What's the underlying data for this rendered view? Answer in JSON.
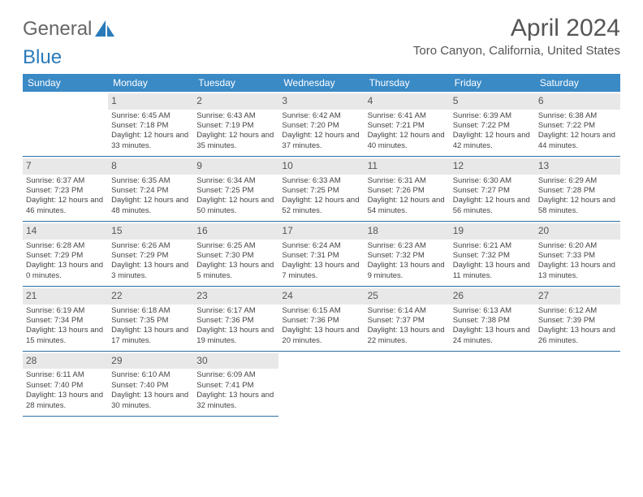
{
  "brand": {
    "part1": "General",
    "part2": "Blue"
  },
  "title": "April 2024",
  "location": "Toro Canyon, California, United States",
  "header_bg": "#3a8ac6",
  "daynum_bg": "#e8e8e8",
  "row_border": "#2a6fa5",
  "columns": [
    "Sunday",
    "Monday",
    "Tuesday",
    "Wednesday",
    "Thursday",
    "Friday",
    "Saturday"
  ],
  "weeks": [
    [
      null,
      {
        "n": "1",
        "sr": "6:45 AM",
        "ss": "7:18 PM",
        "dl": "12 hours and 33 minutes."
      },
      {
        "n": "2",
        "sr": "6:43 AM",
        "ss": "7:19 PM",
        "dl": "12 hours and 35 minutes."
      },
      {
        "n": "3",
        "sr": "6:42 AM",
        "ss": "7:20 PM",
        "dl": "12 hours and 37 minutes."
      },
      {
        "n": "4",
        "sr": "6:41 AM",
        "ss": "7:21 PM",
        "dl": "12 hours and 40 minutes."
      },
      {
        "n": "5",
        "sr": "6:39 AM",
        "ss": "7:22 PM",
        "dl": "12 hours and 42 minutes."
      },
      {
        "n": "6",
        "sr": "6:38 AM",
        "ss": "7:22 PM",
        "dl": "12 hours and 44 minutes."
      }
    ],
    [
      {
        "n": "7",
        "sr": "6:37 AM",
        "ss": "7:23 PM",
        "dl": "12 hours and 46 minutes."
      },
      {
        "n": "8",
        "sr": "6:35 AM",
        "ss": "7:24 PM",
        "dl": "12 hours and 48 minutes."
      },
      {
        "n": "9",
        "sr": "6:34 AM",
        "ss": "7:25 PM",
        "dl": "12 hours and 50 minutes."
      },
      {
        "n": "10",
        "sr": "6:33 AM",
        "ss": "7:25 PM",
        "dl": "12 hours and 52 minutes."
      },
      {
        "n": "11",
        "sr": "6:31 AM",
        "ss": "7:26 PM",
        "dl": "12 hours and 54 minutes."
      },
      {
        "n": "12",
        "sr": "6:30 AM",
        "ss": "7:27 PM",
        "dl": "12 hours and 56 minutes."
      },
      {
        "n": "13",
        "sr": "6:29 AM",
        "ss": "7:28 PM",
        "dl": "12 hours and 58 minutes."
      }
    ],
    [
      {
        "n": "14",
        "sr": "6:28 AM",
        "ss": "7:29 PM",
        "dl": "13 hours and 0 minutes."
      },
      {
        "n": "15",
        "sr": "6:26 AM",
        "ss": "7:29 PM",
        "dl": "13 hours and 3 minutes."
      },
      {
        "n": "16",
        "sr": "6:25 AM",
        "ss": "7:30 PM",
        "dl": "13 hours and 5 minutes."
      },
      {
        "n": "17",
        "sr": "6:24 AM",
        "ss": "7:31 PM",
        "dl": "13 hours and 7 minutes."
      },
      {
        "n": "18",
        "sr": "6:23 AM",
        "ss": "7:32 PM",
        "dl": "13 hours and 9 minutes."
      },
      {
        "n": "19",
        "sr": "6:21 AM",
        "ss": "7:32 PM",
        "dl": "13 hours and 11 minutes."
      },
      {
        "n": "20",
        "sr": "6:20 AM",
        "ss": "7:33 PM",
        "dl": "13 hours and 13 minutes."
      }
    ],
    [
      {
        "n": "21",
        "sr": "6:19 AM",
        "ss": "7:34 PM",
        "dl": "13 hours and 15 minutes."
      },
      {
        "n": "22",
        "sr": "6:18 AM",
        "ss": "7:35 PM",
        "dl": "13 hours and 17 minutes."
      },
      {
        "n": "23",
        "sr": "6:17 AM",
        "ss": "7:36 PM",
        "dl": "13 hours and 19 minutes."
      },
      {
        "n": "24",
        "sr": "6:15 AM",
        "ss": "7:36 PM",
        "dl": "13 hours and 20 minutes."
      },
      {
        "n": "25",
        "sr": "6:14 AM",
        "ss": "7:37 PM",
        "dl": "13 hours and 22 minutes."
      },
      {
        "n": "26",
        "sr": "6:13 AM",
        "ss": "7:38 PM",
        "dl": "13 hours and 24 minutes."
      },
      {
        "n": "27",
        "sr": "6:12 AM",
        "ss": "7:39 PM",
        "dl": "13 hours and 26 minutes."
      }
    ],
    [
      {
        "n": "28",
        "sr": "6:11 AM",
        "ss": "7:40 PM",
        "dl": "13 hours and 28 minutes."
      },
      {
        "n": "29",
        "sr": "6:10 AM",
        "ss": "7:40 PM",
        "dl": "13 hours and 30 minutes."
      },
      {
        "n": "30",
        "sr": "6:09 AM",
        "ss": "7:41 PM",
        "dl": "13 hours and 32 minutes."
      },
      null,
      null,
      null,
      null
    ]
  ],
  "labels": {
    "sunrise": "Sunrise:",
    "sunset": "Sunset:",
    "daylight": "Daylight:"
  }
}
